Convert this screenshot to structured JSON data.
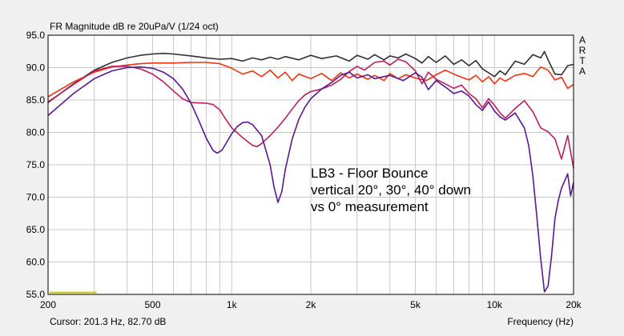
{
  "window": {
    "title": "FR Magnitude dB re 20uPa/V (1/24 oct)",
    "brand_letters": [
      "A",
      "R",
      "T",
      "A"
    ],
    "status": {
      "cursor": "Cursor: 201.3 Hz, 82.70 dB",
      "frequency_label": "Frequency (Hz)"
    }
  },
  "colors": {
    "background": "#f0f0f0",
    "plot_background": "#ffffff",
    "grid": "#c8c8c8",
    "axis_text": "#000000",
    "series_0deg": "#303030",
    "series_20deg": "#ee3311",
    "series_30deg": "#bb1f5a",
    "series_40deg": "#5a1890",
    "cursor_marker": "#c8c800"
  },
  "chart_data": {
    "type": "line",
    "title": "FR Magnitude dB re 20uPa/V (1/24 oct)",
    "xlabel": "Frequency (Hz)",
    "ylabel": "",
    "x_scale": "log",
    "xlim": [
      200,
      20000
    ],
    "ylim": [
      55,
      95
    ],
    "grid": true,
    "x_ticks": [
      200,
      500,
      1000,
      2000,
      5000,
      10000,
      20000
    ],
    "x_tick_labels": [
      "200",
      "500",
      "1k",
      "2k",
      "5k",
      "10k",
      "20k"
    ],
    "x_minor_ticks": [
      300,
      400,
      600,
      700,
      800,
      900,
      3000,
      4000,
      6000,
      7000,
      8000,
      9000
    ],
    "y_ticks": [
      55,
      60,
      65,
      70,
      75,
      80,
      85,
      90,
      95
    ],
    "y_tick_labels": [
      "55.0",
      "60.0",
      "65.0",
      "70.0",
      "75.0",
      "80.0",
      "85.0",
      "90.0",
      "95.0"
    ],
    "annotation": [
      "LB3 - Floor Bounce",
      "vertical 20°, 30°, 40° down",
      "vs 0° measurement"
    ],
    "cursor_marker": {
      "x": [
        200,
        300
      ],
      "y": 55.3
    },
    "series": [
      {
        "color": "#303030",
        "points": [
          [
            200,
            84.6
          ],
          [
            250,
            87.5
          ],
          [
            300,
            89.6
          ],
          [
            350,
            90.8
          ],
          [
            400,
            91.5
          ],
          [
            450,
            91.9
          ],
          [
            500,
            92.1
          ],
          [
            550,
            92.2
          ],
          [
            600,
            92.1
          ],
          [
            700,
            91.8
          ],
          [
            800,
            91.5
          ],
          [
            900,
            91.3
          ],
          [
            1000,
            91.4
          ],
          [
            1100,
            91.0
          ],
          [
            1200,
            91.5
          ],
          [
            1300,
            91.2
          ],
          [
            1400,
            91.6
          ],
          [
            1500,
            91.3
          ],
          [
            1600,
            91.7
          ],
          [
            1800,
            91.2
          ],
          [
            2000,
            91.9
          ],
          [
            2200,
            91.4
          ],
          [
            2500,
            91.8
          ],
          [
            2800,
            91.0
          ],
          [
            3000,
            91.9
          ],
          [
            3300,
            91.3
          ],
          [
            3500,
            92.0
          ],
          [
            3800,
            91.2
          ],
          [
            4000,
            91.8
          ],
          [
            4300,
            91.5
          ],
          [
            4600,
            92.1
          ],
          [
            5000,
            91.4
          ],
          [
            5300,
            90.7
          ],
          [
            5600,
            91.7
          ],
          [
            6000,
            90.8
          ],
          [
            6500,
            91.8
          ],
          [
            7000,
            90.5
          ],
          [
            7500,
            91.2
          ],
          [
            8000,
            90.3
          ],
          [
            8500,
            91.1
          ],
          [
            9000,
            89.8
          ],
          [
            9500,
            89.2
          ],
          [
            10000,
            88.6
          ],
          [
            10500,
            89.5
          ],
          [
            11000,
            88.9
          ],
          [
            11500,
            90.0
          ],
          [
            12000,
            91.0
          ],
          [
            13000,
            90.5
          ],
          [
            14000,
            92.0
          ],
          [
            15000,
            91.5
          ],
          [
            15500,
            92.5
          ],
          [
            16000,
            91.2
          ],
          [
            17000,
            89.0
          ],
          [
            18000,
            88.9
          ],
          [
            19000,
            90.3
          ],
          [
            20000,
            90.5
          ]
        ]
      },
      {
        "color": "#ee3311",
        "points": [
          [
            200,
            85.5
          ],
          [
            250,
            87.8
          ],
          [
            300,
            89.3
          ],
          [
            350,
            90.1
          ],
          [
            400,
            90.4
          ],
          [
            450,
            90.6
          ],
          [
            500,
            90.7
          ],
          [
            600,
            90.7
          ],
          [
            700,
            90.8
          ],
          [
            800,
            90.8
          ],
          [
            900,
            90.6
          ],
          [
            1000,
            89.9
          ],
          [
            1100,
            89.0
          ],
          [
            1200,
            89.5
          ],
          [
            1300,
            88.6
          ],
          [
            1400,
            89.6
          ],
          [
            1500,
            88.4
          ],
          [
            1600,
            89.3
          ],
          [
            1700,
            88.0
          ],
          [
            1800,
            89.0
          ],
          [
            2000,
            88.3
          ],
          [
            2200,
            89.1
          ],
          [
            2400,
            88.0
          ],
          [
            2600,
            89.2
          ],
          [
            2800,
            88.4
          ],
          [
            3000,
            89.0
          ],
          [
            3300,
            88.2
          ],
          [
            3500,
            88.8
          ],
          [
            3800,
            88.0
          ],
          [
            4000,
            89.1
          ],
          [
            4300,
            88.3
          ],
          [
            4600,
            88.9
          ],
          [
            5000,
            88.4
          ],
          [
            5500,
            88.0
          ],
          [
            6000,
            88.9
          ],
          [
            6500,
            89.6
          ],
          [
            7000,
            89.0
          ],
          [
            7500,
            88.5
          ],
          [
            8000,
            88.1
          ],
          [
            8500,
            88.8
          ],
          [
            9000,
            87.8
          ],
          [
            9500,
            88.6
          ],
          [
            10000,
            87.5
          ],
          [
            10500,
            88.4
          ],
          [
            11000,
            87.9
          ],
          [
            12000,
            88.8
          ],
          [
            13000,
            89.1
          ],
          [
            14000,
            88.6
          ],
          [
            15000,
            90.1
          ],
          [
            16000,
            89.6
          ],
          [
            17000,
            88.1
          ],
          [
            18000,
            88.5
          ],
          [
            19000,
            86.8
          ],
          [
            20000,
            87.4
          ]
        ]
      },
      {
        "color": "#bb1f5a",
        "points": [
          [
            200,
            84.7
          ],
          [
            250,
            87.4
          ],
          [
            300,
            89.5
          ],
          [
            350,
            90.2
          ],
          [
            400,
            90.2
          ],
          [
            450,
            89.8
          ],
          [
            500,
            89.0
          ],
          [
            550,
            87.8
          ],
          [
            600,
            86.4
          ],
          [
            650,
            85.2
          ],
          [
            700,
            84.6
          ],
          [
            800,
            84.5
          ],
          [
            850,
            84.3
          ],
          [
            900,
            83.5
          ],
          [
            950,
            82.0
          ],
          [
            1000,
            80.7
          ],
          [
            1100,
            79.2
          ],
          [
            1200,
            78.0
          ],
          [
            1250,
            77.8
          ],
          [
            1300,
            78.3
          ],
          [
            1400,
            79.5
          ],
          [
            1500,
            80.8
          ],
          [
            1600,
            82.2
          ],
          [
            1700,
            83.6
          ],
          [
            1800,
            84.9
          ],
          [
            1900,
            85.8
          ],
          [
            2000,
            86.3
          ],
          [
            2200,
            86.7
          ],
          [
            2400,
            87.3
          ],
          [
            2600,
            88.2
          ],
          [
            2800,
            89.4
          ],
          [
            3000,
            90.2
          ],
          [
            3200,
            89.6
          ],
          [
            3500,
            90.8
          ],
          [
            3800,
            91.0
          ],
          [
            4000,
            90.4
          ],
          [
            4300,
            91.3
          ],
          [
            4600,
            90.9
          ],
          [
            5000,
            89.5
          ],
          [
            5300,
            87.5
          ],
          [
            5600,
            89.3
          ],
          [
            6000,
            88.2
          ],
          [
            6500,
            87.5
          ],
          [
            7000,
            86.8
          ],
          [
            7500,
            87.3
          ],
          [
            8000,
            86.0
          ],
          [
            8500,
            85.2
          ],
          [
            9000,
            83.8
          ],
          [
            9500,
            85.2
          ],
          [
            10000,
            84.2
          ],
          [
            10500,
            83.0
          ],
          [
            11000,
            82.2
          ],
          [
            12000,
            83.7
          ],
          [
            13000,
            84.9
          ],
          [
            14000,
            83.2
          ],
          [
            15000,
            80.7
          ],
          [
            16000,
            80.1
          ],
          [
            17000,
            79.0
          ],
          [
            18000,
            75.9
          ],
          [
            19000,
            79.5
          ],
          [
            20000,
            74.5
          ]
        ]
      },
      {
        "color": "#5a1890",
        "points": [
          [
            200,
            82.6
          ],
          [
            250,
            86.0
          ],
          [
            300,
            88.3
          ],
          [
            350,
            89.5
          ],
          [
            400,
            90.0
          ],
          [
            450,
            90.1
          ],
          [
            500,
            89.9
          ],
          [
            550,
            89.3
          ],
          [
            600,
            88.3
          ],
          [
            650,
            86.7
          ],
          [
            700,
            84.5
          ],
          [
            750,
            81.8
          ],
          [
            800,
            79.1
          ],
          [
            850,
            77.2
          ],
          [
            880,
            76.8
          ],
          [
            920,
            77.3
          ],
          [
            1000,
            79.8
          ],
          [
            1050,
            80.9
          ],
          [
            1100,
            81.5
          ],
          [
            1150,
            81.6
          ],
          [
            1200,
            81.2
          ],
          [
            1300,
            79.5
          ],
          [
            1400,
            75.0
          ],
          [
            1450,
            71.5
          ],
          [
            1500,
            69.2
          ],
          [
            1550,
            70.8
          ],
          [
            1600,
            74.3
          ],
          [
            1700,
            79.0
          ],
          [
            1800,
            82.0
          ],
          [
            1900,
            83.9
          ],
          [
            2000,
            85.2
          ],
          [
            2200,
            86.7
          ],
          [
            2400,
            87.7
          ],
          [
            2600,
            88.8
          ],
          [
            2800,
            89.3
          ],
          [
            3000,
            88.4
          ],
          [
            3300,
            88.9
          ],
          [
            3500,
            88.3
          ],
          [
            4000,
            88.8
          ],
          [
            4500,
            88.0
          ],
          [
            5000,
            89.2
          ],
          [
            5300,
            88.5
          ],
          [
            5600,
            86.6
          ],
          [
            6000,
            88.0
          ],
          [
            6500,
            87.0
          ],
          [
            7000,
            86.0
          ],
          [
            7500,
            86.4
          ],
          [
            8000,
            85.6
          ],
          [
            8500,
            84.3
          ],
          [
            9000,
            83.4
          ],
          [
            9500,
            84.7
          ],
          [
            10000,
            83.3
          ],
          [
            10500,
            82.4
          ],
          [
            11000,
            81.9
          ],
          [
            12000,
            83.0
          ],
          [
            13000,
            80.7
          ],
          [
            13500,
            78.0
          ],
          [
            14000,
            73.3
          ],
          [
            14500,
            67.0
          ],
          [
            15000,
            60.5
          ],
          [
            15500,
            55.4
          ],
          [
            16000,
            56.3
          ],
          [
            16500,
            61.0
          ],
          [
            17000,
            66.7
          ],
          [
            17500,
            69.5
          ],
          [
            18000,
            71.4
          ],
          [
            19000,
            73.6
          ],
          [
            19500,
            70.2
          ],
          [
            20000,
            72.3
          ]
        ]
      }
    ]
  }
}
